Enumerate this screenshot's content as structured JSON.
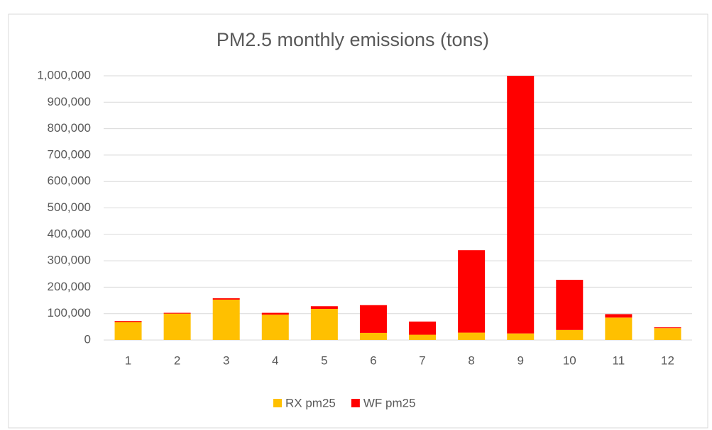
{
  "chart_data": {
    "type": "stacked_bar",
    "title": "PM2.5 monthly emissions (tons)",
    "categories": [
      "1",
      "2",
      "3",
      "4",
      "5",
      "6",
      "7",
      "8",
      "9",
      "10",
      "11",
      "12"
    ],
    "series": [
      {
        "name": "RX pm25",
        "color": "#ffc000",
        "values": [
          68000,
          100000,
          153000,
          96000,
          118000,
          27000,
          20000,
          28000,
          25000,
          38000,
          85000,
          45000
        ]
      },
      {
        "name": "WF pm25",
        "color": "#ff0000",
        "values": [
          4000,
          3000,
          5000,
          7000,
          10000,
          105000,
          50000,
          312000,
          975000,
          190000,
          13000,
          3000
        ]
      }
    ],
    "ylim": [
      0,
      1000000
    ],
    "yticks": [
      0,
      {
        "value": 100000,
        "label": "100,000"
      },
      {
        "value": 200000,
        "label": "200,000"
      },
      {
        "value": 300000,
        "label": "300,000"
      },
      {
        "value": 400000,
        "label": "400,000"
      },
      {
        "value": 500000,
        "label": "500,000"
      },
      {
        "value": 600000,
        "label": "600,000"
      },
      {
        "value": 700000,
        "label": "700,000"
      },
      {
        "value": 800000,
        "label": "800,000"
      },
      {
        "value": 900000,
        "label": "900,000"
      },
      {
        "value": 1000000,
        "label": "1,000,000"
      }
    ],
    "grid": true,
    "legend": "bottom"
  }
}
